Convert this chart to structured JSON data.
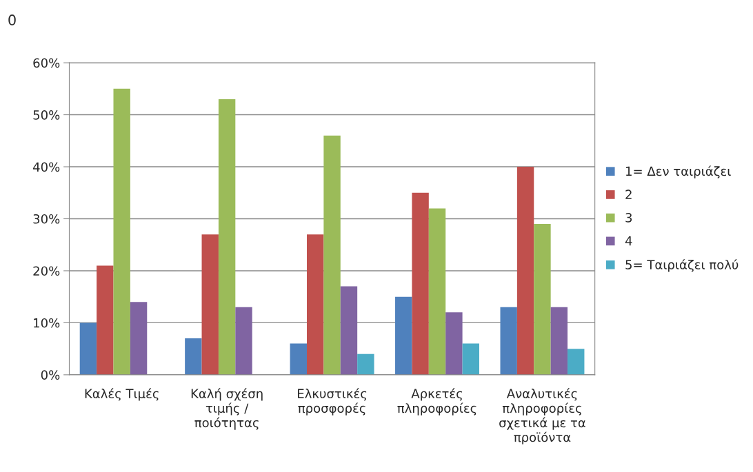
{
  "chart_data": {
    "type": "bar",
    "categories": [
      "Καλές Τιμές",
      "Καλή σχέση τιμής / ποιότητας",
      "Ελκυστικές προσφορές",
      "Αρκετές πληροφορίες",
      "Αναλυτικές πληροφορίες σχετικά με τα προϊόντα"
    ],
    "series": [
      {
        "name": "1= Δεν ταιριάζει",
        "color": "#4f81bd",
        "values": [
          10,
          7,
          6,
          15,
          13
        ]
      },
      {
        "name": "2",
        "color": "#c0504d",
        "values": [
          21,
          27,
          27,
          35,
          40
        ]
      },
      {
        "name": "3",
        "color": "#9bbb59",
        "values": [
          55,
          53,
          46,
          32,
          29
        ]
      },
      {
        "name": "4",
        "color": "#8064a2",
        "values": [
          14,
          13,
          17,
          12,
          13
        ]
      },
      {
        "name": "5= Ταιριάζει πολύ",
        "color": "#4bacc6",
        "values": [
          null,
          null,
          4,
          6,
          5
        ]
      }
    ],
    "ylim": [
      0,
      60
    ],
    "yticks": [
      {
        "value": 0,
        "label": "0%"
      },
      {
        "value": 10,
        "label": "10%"
      },
      {
        "value": 20,
        "label": "20%"
      },
      {
        "value": 30,
        "label": "30%"
      },
      {
        "value": 40,
        "label": "40%"
      },
      {
        "value": 50,
        "label": "50%"
      },
      {
        "value": 60,
        "label": "60%"
      }
    ],
    "grid": "y",
    "legend": "right",
    "annotations": [
      "0"
    ]
  }
}
